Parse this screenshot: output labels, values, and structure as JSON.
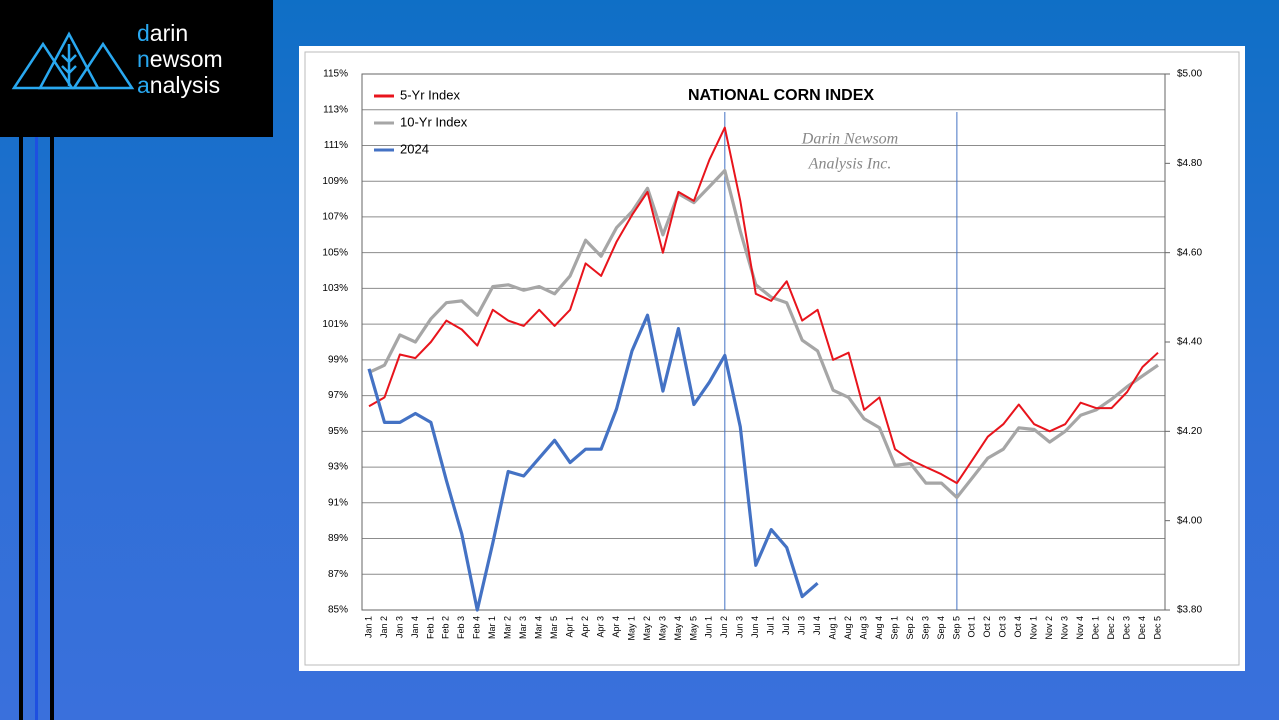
{
  "logo": {
    "lines": [
      "darin",
      "newsom",
      "analysis"
    ]
  },
  "chart_data": {
    "type": "line",
    "title": "NATIONAL CORN INDEX",
    "watermark": [
      "Darin Newsom",
      "Analysis Inc."
    ],
    "categories": [
      "Jan 1",
      "Jan 2",
      "Jan 3",
      "Jan 4",
      "Feb 1",
      "Feb 2",
      "Feb 3",
      "Feb 4",
      "Mar 1",
      "Mar 2",
      "Mar 3",
      "Mar 4",
      "Mar 5",
      "Apr 1",
      "Apr 2",
      "Apr 3",
      "Apr 4",
      "May 1",
      "May 2",
      "May 3",
      "May 4",
      "May 5",
      "Jun 1",
      "Jun 2",
      "Jun 3",
      "Jun 4",
      "Jul 1",
      "Jul 2",
      "Jul 3",
      "Jul 4",
      "Aug 1",
      "Aug 2",
      "Aug 3",
      "Aug 4",
      "Sep 1",
      "Sep 2",
      "Sep 3",
      "Sep 4",
      "Sep 5",
      "Oct 1",
      "Oct 2",
      "Oct 3",
      "Oct 4",
      "Nov 1",
      "Nov 2",
      "Nov 3",
      "Nov 4",
      "Dec 1",
      "Dec 2",
      "Dec 3",
      "Dec 4",
      "Dec 5"
    ],
    "series": [
      {
        "name": "5-Yr Index",
        "color": "#e8141c",
        "values": [
          96.4,
          96.9,
          99.3,
          99.1,
          100.0,
          101.2,
          100.7,
          99.8,
          101.8,
          101.2,
          100.9,
          101.8,
          100.9,
          101.8,
          104.4,
          103.7,
          105.6,
          107.1,
          108.4,
          105.0,
          108.4,
          107.9,
          110.2,
          112.0,
          107.9,
          102.7,
          102.3,
          103.4,
          101.2,
          101.8,
          99.0,
          99.4,
          96.2,
          96.9,
          94.0,
          93.4,
          93.0,
          92.6,
          92.1,
          93.4,
          94.7,
          95.4,
          96.5,
          95.4,
          95.0,
          95.4,
          96.6,
          96.3,
          96.3,
          97.2,
          98.6,
          99.4
        ]
      },
      {
        "name": "10-Yr Index",
        "color": "#a6a6a6",
        "values": [
          98.3,
          98.7,
          100.4,
          100.0,
          101.3,
          102.2,
          102.3,
          101.5,
          103.1,
          103.2,
          102.9,
          103.1,
          102.7,
          103.7,
          105.7,
          104.8,
          106.4,
          107.3,
          108.6,
          106.0,
          108.3,
          107.8,
          108.7,
          109.6,
          106.2,
          103.2,
          102.5,
          102.2,
          100.1,
          99.5,
          97.3,
          96.9,
          95.7,
          95.2,
          93.1,
          93.2,
          92.1,
          92.1,
          91.3,
          92.4,
          93.5,
          94.0,
          95.2,
          95.1,
          94.4,
          95.0,
          95.9,
          96.2,
          96.8,
          97.5,
          98.1,
          98.7
        ]
      },
      {
        "name": "2024",
        "color": "#4472c4",
        "axis": "y2",
        "values": [
          4.34,
          4.22,
          4.22,
          4.24,
          4.22,
          4.09,
          3.97,
          3.8,
          3.95,
          4.11,
          4.1,
          4.14,
          4.18,
          4.13,
          4.16,
          4.16,
          4.25,
          4.38,
          4.46,
          4.29,
          4.43,
          4.26,
          4.31,
          4.37,
          4.21,
          3.9,
          3.98,
          3.94,
          3.83,
          3.86,
          null,
          null,
          null,
          null,
          null,
          null,
          null,
          null,
          null,
          null,
          null,
          null,
          null,
          null,
          null,
          null,
          null,
          null,
          null,
          null,
          null,
          null
        ]
      }
    ],
    "reference_lines": [
      "Jun 2",
      "Sep 5"
    ],
    "ylim": [
      85,
      115
    ],
    "yticks": [
      {
        "value": 85,
        "label": "85%"
      },
      {
        "value": 87,
        "label": "87%"
      },
      {
        "value": 89,
        "label": "89%"
      },
      {
        "value": 91,
        "label": "91%"
      },
      {
        "value": 93,
        "label": "93%"
      },
      {
        "value": 95,
        "label": "95%"
      },
      {
        "value": 97,
        "label": "97%"
      },
      {
        "value": 99,
        "label": "99%"
      },
      {
        "value": 101,
        "label": "101%"
      },
      {
        "value": 103,
        "label": "103%"
      },
      {
        "value": 105,
        "label": "105%"
      },
      {
        "value": 107,
        "label": "107%"
      },
      {
        "value": 109,
        "label": "109%"
      },
      {
        "value": 111,
        "label": "111%"
      },
      {
        "value": 113,
        "label": "113%"
      },
      {
        "value": 115,
        "label": "115%"
      }
    ],
    "y2lim": [
      3.8,
      5.0
    ],
    "y2ticks": [
      {
        "value": 3.8,
        "label": "$3.80"
      },
      {
        "value": 4.0,
        "label": "$4.00"
      },
      {
        "value": 4.2,
        "label": "$4.20"
      },
      {
        "value": 4.4,
        "label": "$4.40"
      },
      {
        "value": 4.6,
        "label": "$4.60"
      },
      {
        "value": 4.8,
        "label": "$4.80"
      },
      {
        "value": 5.0,
        "label": "$5.00"
      }
    ],
    "grid": true,
    "legend": "upper left"
  }
}
